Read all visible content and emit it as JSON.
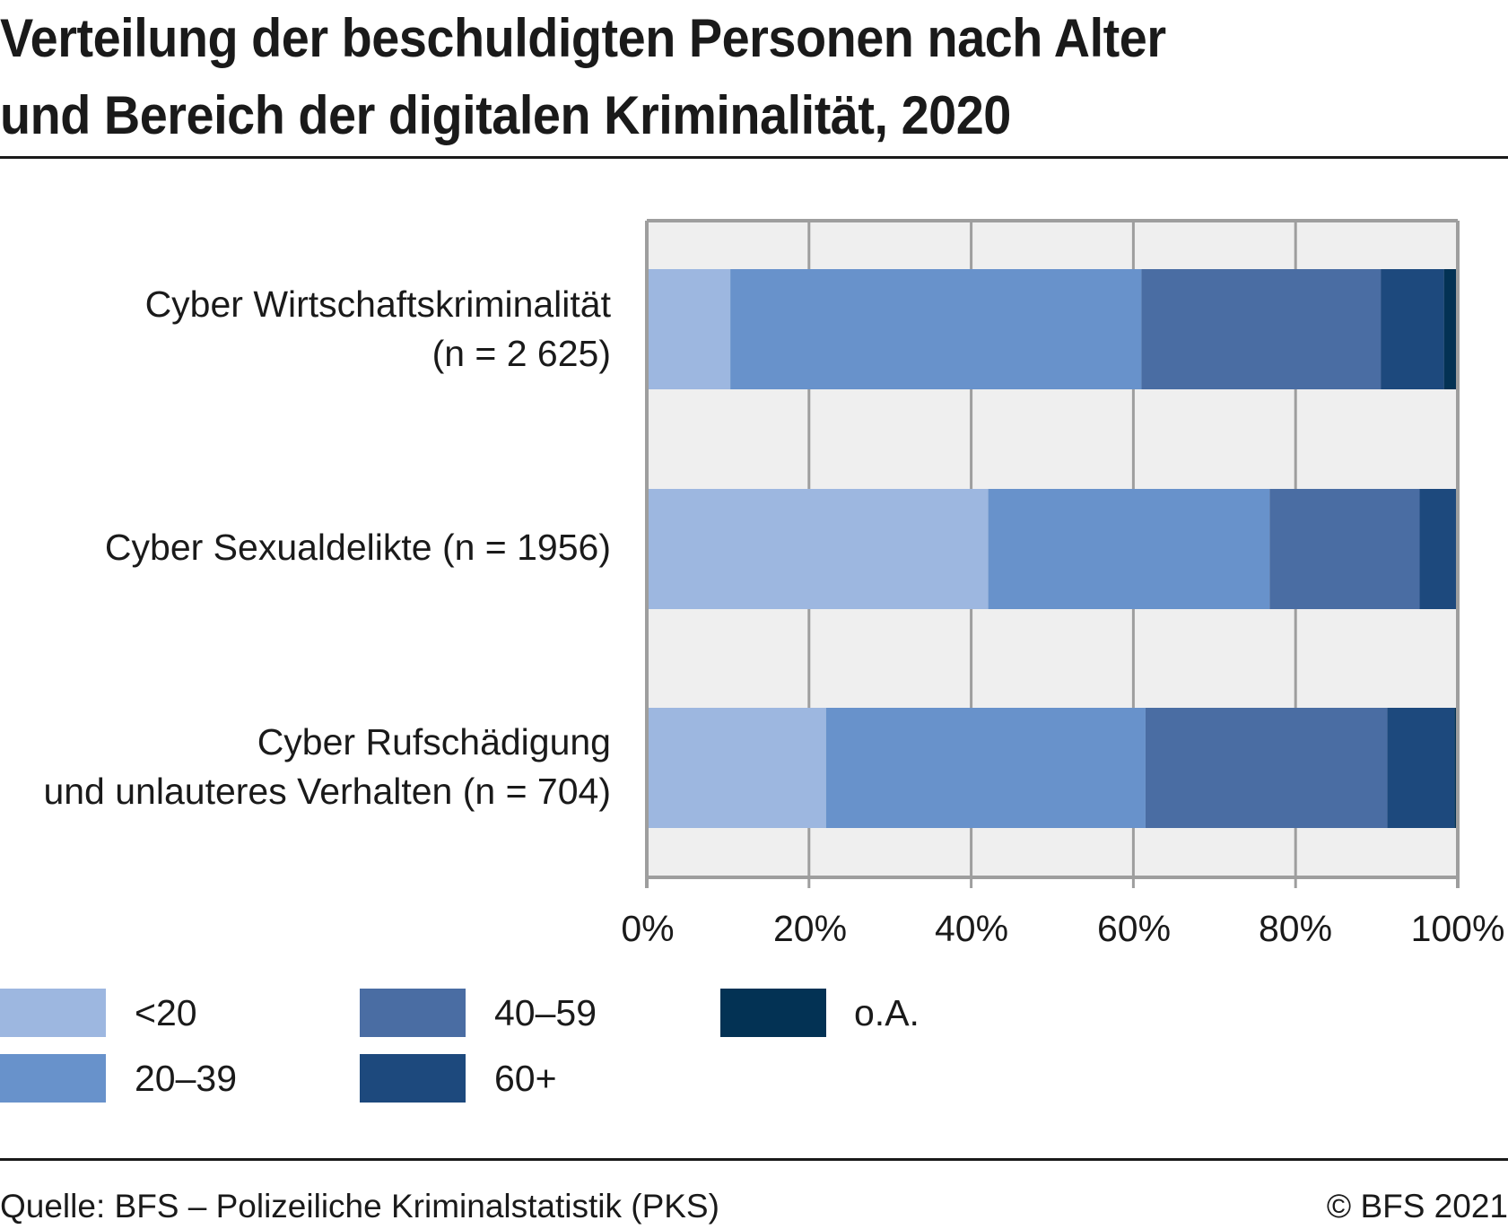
{
  "header": {
    "title_line1": "Verteilung der beschuldigten Personen nach Alter",
    "title_line2": "und Bereich der digitalen Kriminalität, 2020"
  },
  "chart_data": {
    "type": "bar",
    "orientation": "horizontal",
    "stacked": true,
    "percent": true,
    "title": "Verteilung der beschuldigten Personen nach Alter und Bereich der digitalen Kriminalität, 2020",
    "xlabel": "",
    "ylabel": "",
    "xlim": [
      0,
      100
    ],
    "grid": true,
    "legend_position": "bottom",
    "categories": [
      {
        "line1": "Cyber Wirtschaftskriminalität",
        "line2": "(n = 2 625)"
      },
      {
        "line1": "Cyber Sexualdelikte (n = 1956)",
        "line2": ""
      },
      {
        "line1": "Cyber Rufschädigung",
        "line2": "und unlauteres Verhalten (n = 704)"
      }
    ],
    "x_ticks": [
      "0%",
      "20%",
      "40%",
      "60%",
      "80%",
      "100%"
    ],
    "x_tick_values": [
      0,
      20,
      40,
      60,
      80,
      100
    ],
    "series": [
      {
        "name": "<20",
        "color": "#9DB7E0",
        "values": [
          10.3,
          42.1,
          22.1
        ]
      },
      {
        "name": "20–39",
        "color": "#6892CB",
        "values": [
          50.7,
          34.7,
          39.4
        ]
      },
      {
        "name": "40–59",
        "color": "#4A6DA3",
        "values": [
          29.5,
          18.5,
          29.8
        ]
      },
      {
        "name": "60+",
        "color": "#1D497D",
        "values": [
          7.8,
          4.6,
          8.3
        ]
      },
      {
        "name": "o.A.",
        "color": "#033254",
        "values": [
          1.5,
          0.0,
          0.3
        ]
      }
    ],
    "legend_order": [
      "<20",
      "20–39",
      "40–59",
      "60+",
      "o.A."
    ]
  },
  "footer": {
    "source": "Quelle: BFS – Polizeiliche Kriminalstatistik (PKS)",
    "copyright": "© BFS 2021"
  }
}
